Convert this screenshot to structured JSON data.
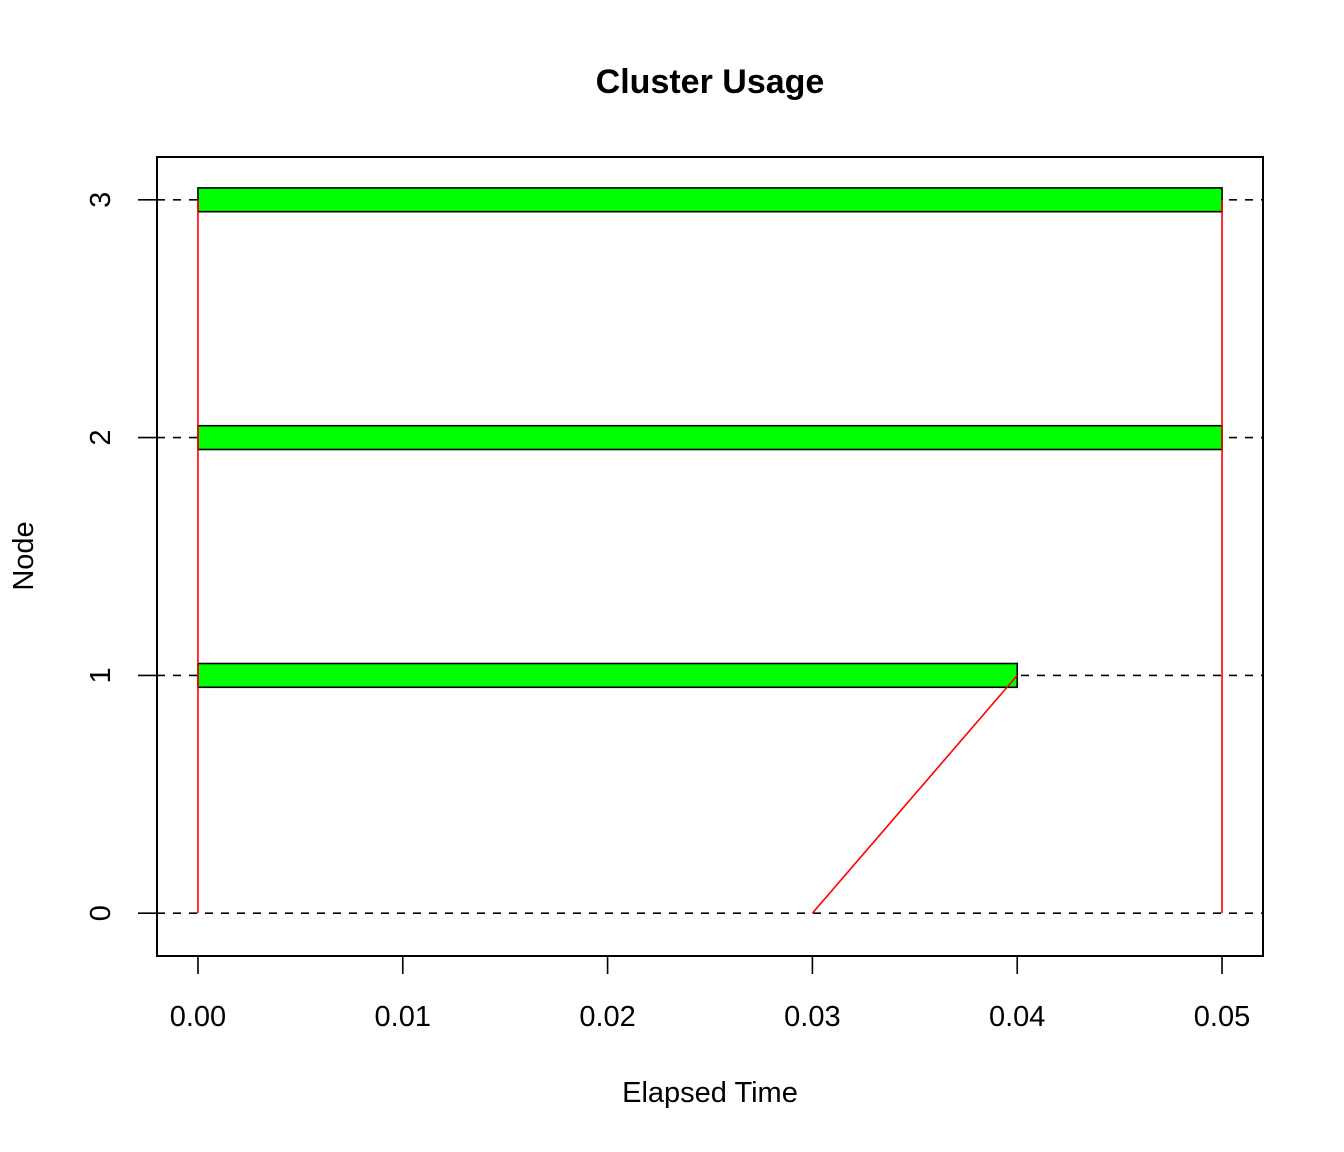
{
  "chart_data": {
    "type": "bar",
    "title": "Cluster Usage",
    "xlabel": "Elapsed Time",
    "ylabel": "Node",
    "xlim": [
      -0.002,
      0.052
    ],
    "ylim": [
      -0.18,
      3.18
    ],
    "x_ticks": [
      "0.00",
      "0.01",
      "0.02",
      "0.03",
      "0.04",
      "0.05"
    ],
    "x_tick_values": [
      0,
      0.01,
      0.02,
      0.03,
      0.04,
      0.05
    ],
    "y_ticks": [
      "0",
      "1",
      "2",
      "3"
    ],
    "y_tick_values": [
      0,
      1,
      2,
      3
    ],
    "grid": "dashed horizontal lines at each node",
    "colors": {
      "bar_fill": "#00ff00",
      "bar_border": "#000000",
      "line": "#ff0000",
      "grid": "#000000"
    },
    "bars": [
      {
        "node": 1,
        "start": 0.0,
        "end": 0.04
      },
      {
        "node": 2,
        "start": 0.0,
        "end": 0.05
      },
      {
        "node": 3,
        "start": 0.0,
        "end": 0.05
      }
    ],
    "line_segments": [
      {
        "points": [
          [
            0.0,
            0
          ],
          [
            0.0,
            3
          ]
        ]
      },
      {
        "points": [
          [
            0.05,
            0
          ],
          [
            0.05,
            3
          ]
        ]
      },
      {
        "points": [
          [
            0.03,
            0
          ],
          [
            0.04,
            1
          ]
        ]
      }
    ]
  }
}
